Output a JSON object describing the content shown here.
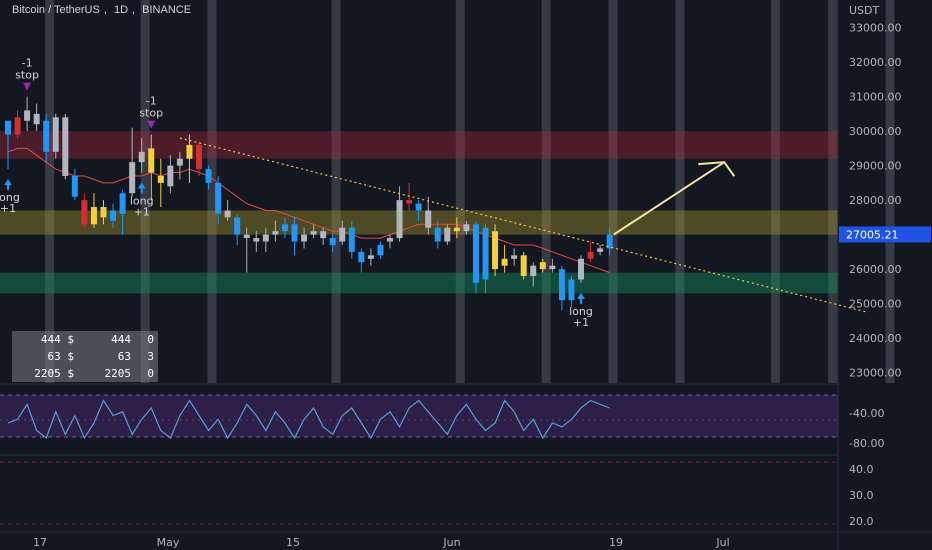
{
  "header": {
    "symbol": "Bitcoin / TetherUS",
    "interval": "1D",
    "exchange": "BINANCE",
    "sep": ","
  },
  "price_axis": {
    "currency": "USDT",
    "ticks": [
      "33000.00",
      "32000.00",
      "31000.00",
      "30000.00",
      "29000.00",
      "28000.00",
      "27000.00",
      "26000.00",
      "25000.00",
      "24000.00",
      "23000.00"
    ],
    "current_price": "27005.21",
    "current_price_value": 27005.21
  },
  "rsi_axis": {
    "ticks": [
      "-40.00",
      "-80.00"
    ]
  },
  "lower_axis": {
    "ticks": [
      "40.0",
      "30.0",
      "20.0"
    ]
  },
  "time_axis": {
    "labels": [
      "17",
      "May",
      "15",
      "Jun",
      "19",
      "Jul"
    ]
  },
  "stats_table": [
    {
      "a": "444 $",
      "b": "444",
      "c": "0"
    },
    {
      "a": "63 $",
      "b": "63",
      "c": "3"
    },
    {
      "a": "2205 $",
      "b": "2205",
      "c": "0"
    }
  ],
  "signals": [
    {
      "text": "-1",
      "text2": "stop",
      "type": "stop",
      "i": 2
    },
    {
      "text": "long",
      "text2": "+1",
      "type": "long",
      "i": 0
    },
    {
      "text": "-1",
      "text2": "stop",
      "type": "stop",
      "i": 15
    },
    {
      "text": "long",
      "text2": "+1",
      "type": "long",
      "i": 14
    },
    {
      "text": "long",
      "text2": "+1",
      "type": "long",
      "i": 60
    }
  ],
  "colors": {
    "background": "#131722",
    "up_blue": "#2196f3",
    "down_gray": "#b2b5be",
    "yellow": "#f4d03f",
    "red": "#d32f2f",
    "ma": "#e04f3f",
    "trend": "#f5c842",
    "arrow": "#f0e6a0",
    "rsi": "#5b9bd5",
    "zone_red": "rgba(180,40,60,0.35)",
    "zone_yellow": "rgba(190,170,40,0.35)",
    "zone_green": "rgba(20,140,90,0.45)",
    "price_tag": "#1e53e5"
  },
  "chart_data": {
    "type": "candlestick",
    "title": "Bitcoin / TetherUS, 1D, BINANCE",
    "ylim": [
      22700,
      33800
    ],
    "zones": [
      {
        "name": "resistance",
        "low": 29200,
        "high": 30000,
        "color": "red"
      },
      {
        "name": "mid",
        "low": 27000,
        "high": 27700,
        "color": "yellow"
      },
      {
        "name": "support",
        "low": 25300,
        "high": 25900,
        "color": "green"
      }
    ],
    "candles": [
      {
        "o": 29900,
        "h": 30200,
        "l": 28900,
        "c": 30300,
        "col": "blue"
      },
      {
        "o": 30400,
        "h": 30600,
        "l": 29800,
        "c": 29900,
        "col": "red"
      },
      {
        "o": 30300,
        "h": 31000,
        "l": 30000,
        "c": 30600,
        "col": "gray"
      },
      {
        "o": 30500,
        "h": 30800,
        "l": 30000,
        "c": 30200,
        "col": "gray"
      },
      {
        "o": 30300,
        "h": 30500,
        "l": 29100,
        "c": 29400,
        "col": "blue"
      },
      {
        "o": 29400,
        "h": 30500,
        "l": 29200,
        "c": 30400,
        "col": "gray"
      },
      {
        "o": 30400,
        "h": 30500,
        "l": 28600,
        "c": 28700,
        "col": "gray"
      },
      {
        "o": 28700,
        "h": 28900,
        "l": 28000,
        "c": 28100,
        "col": "blue"
      },
      {
        "o": 28000,
        "h": 28200,
        "l": 27200,
        "c": 27300,
        "col": "red"
      },
      {
        "o": 27300,
        "h": 28200,
        "l": 27200,
        "c": 27800,
        "col": "yellow"
      },
      {
        "o": 27800,
        "h": 28000,
        "l": 27300,
        "c": 27500,
        "col": "yellow"
      },
      {
        "o": 27400,
        "h": 27900,
        "l": 27200,
        "c": 27700,
        "col": "blue"
      },
      {
        "o": 27600,
        "h": 28300,
        "l": 27000,
        "c": 28200,
        "col": "blue"
      },
      {
        "o": 28200,
        "h": 30100,
        "l": 28100,
        "c": 29100,
        "col": "gray"
      },
      {
        "o": 29100,
        "h": 29800,
        "l": 28800,
        "c": 29400,
        "col": "gray"
      },
      {
        "o": 29500,
        "h": 29900,
        "l": 28000,
        "c": 28800,
        "col": "yellow"
      },
      {
        "o": 28700,
        "h": 29200,
        "l": 27800,
        "c": 28500,
        "col": "yellow"
      },
      {
        "o": 28400,
        "h": 29300,
        "l": 28200,
        "c": 29000,
        "col": "gray"
      },
      {
        "o": 29000,
        "h": 29400,
        "l": 28600,
        "c": 29200,
        "col": "gray"
      },
      {
        "o": 29200,
        "h": 29900,
        "l": 28500,
        "c": 29600,
        "col": "yellow"
      },
      {
        "o": 29600,
        "h": 29700,
        "l": 28700,
        "c": 28900,
        "col": "red"
      },
      {
        "o": 28900,
        "h": 29000,
        "l": 28300,
        "c": 28500,
        "col": "blue"
      },
      {
        "o": 28500,
        "h": 28700,
        "l": 27300,
        "c": 27600,
        "col": "blue"
      },
      {
        "o": 27700,
        "h": 28000,
        "l": 27400,
        "c": 27500,
        "col": "gray"
      },
      {
        "o": 27500,
        "h": 27600,
        "l": 26700,
        "c": 27000,
        "col": "blue"
      },
      {
        "o": 27000,
        "h": 27200,
        "l": 25900,
        "c": 26900,
        "col": "gray"
      },
      {
        "o": 26900,
        "h": 27100,
        "l": 26500,
        "c": 26800,
        "col": "gray"
      },
      {
        "o": 26800,
        "h": 27200,
        "l": 26500,
        "c": 27000,
        "col": "gray"
      },
      {
        "o": 27000,
        "h": 27400,
        "l": 26800,
        "c": 27100,
        "col": "gray"
      },
      {
        "o": 27100,
        "h": 27500,
        "l": 26900,
        "c": 27300,
        "col": "blue"
      },
      {
        "o": 27300,
        "h": 27500,
        "l": 26400,
        "c": 26800,
        "col": "blue"
      },
      {
        "o": 26800,
        "h": 27200,
        "l": 26600,
        "c": 27000,
        "col": "gray"
      },
      {
        "o": 27000,
        "h": 27300,
        "l": 26900,
        "c": 27100,
        "col": "gray"
      },
      {
        "o": 27100,
        "h": 27200,
        "l": 26700,
        "c": 26900,
        "col": "gray"
      },
      {
        "o": 26900,
        "h": 27000,
        "l": 26500,
        "c": 26700,
        "col": "blue"
      },
      {
        "o": 26800,
        "h": 27400,
        "l": 26700,
        "c": 27200,
        "col": "gray"
      },
      {
        "o": 27200,
        "h": 27400,
        "l": 26300,
        "c": 26500,
        "col": "blue"
      },
      {
        "o": 26500,
        "h": 26600,
        "l": 25900,
        "c": 26200,
        "col": "blue"
      },
      {
        "o": 26300,
        "h": 26600,
        "l": 26100,
        "c": 26400,
        "col": "gray"
      },
      {
        "o": 26400,
        "h": 26800,
        "l": 26300,
        "c": 26700,
        "col": "blue"
      },
      {
        "o": 26800,
        "h": 27000,
        "l": 26600,
        "c": 26900,
        "col": "gray"
      },
      {
        "o": 26900,
        "h": 28400,
        "l": 26800,
        "c": 28000,
        "col": "gray"
      },
      {
        "o": 28000,
        "h": 28500,
        "l": 27700,
        "c": 27900,
        "col": "red"
      },
      {
        "o": 27900,
        "h": 28000,
        "l": 27400,
        "c": 27700,
        "col": "blue"
      },
      {
        "o": 27700,
        "h": 28100,
        "l": 27000,
        "c": 27200,
        "col": "gray"
      },
      {
        "o": 27200,
        "h": 27400,
        "l": 26600,
        "c": 26800,
        "col": "blue"
      },
      {
        "o": 26800,
        "h": 27300,
        "l": 26700,
        "c": 27200,
        "col": "gray"
      },
      {
        "o": 27200,
        "h": 27500,
        "l": 26900,
        "c": 27100,
        "col": "yellow"
      },
      {
        "o": 27100,
        "h": 27400,
        "l": 27000,
        "c": 27300,
        "col": "gray"
      },
      {
        "o": 27300,
        "h": 27400,
        "l": 25300,
        "c": 25600,
        "col": "blue"
      },
      {
        "o": 25700,
        "h": 27300,
        "l": 25300,
        "c": 27200,
        "col": "blue"
      },
      {
        "o": 27100,
        "h": 27300,
        "l": 25800,
        "c": 26000,
        "col": "yellow"
      },
      {
        "o": 26100,
        "h": 26700,
        "l": 25900,
        "c": 26300,
        "col": "yellow"
      },
      {
        "o": 26300,
        "h": 26600,
        "l": 26100,
        "c": 26400,
        "col": "gray"
      },
      {
        "o": 26400,
        "h": 26500,
        "l": 25700,
        "c": 25800,
        "col": "yellow"
      },
      {
        "o": 25800,
        "h": 26200,
        "l": 25500,
        "c": 26100,
        "col": "gray"
      },
      {
        "o": 26000,
        "h": 26300,
        "l": 25900,
        "c": 26200,
        "col": "yellow"
      },
      {
        "o": 26100,
        "h": 26300,
        "l": 25900,
        "c": 26000,
        "col": "gray"
      },
      {
        "o": 26000,
        "h": 26100,
        "l": 24800,
        "c": 25100,
        "col": "blue"
      },
      {
        "o": 25100,
        "h": 25800,
        "l": 24900,
        "c": 25700,
        "col": "blue"
      },
      {
        "o": 25700,
        "h": 26400,
        "l": 25600,
        "c": 26300,
        "col": "gray"
      },
      {
        "o": 26300,
        "h": 26800,
        "l": 26200,
        "c": 26500,
        "col": "red"
      },
      {
        "o": 26500,
        "h": 26700,
        "l": 26400,
        "c": 26600,
        "col": "gray"
      },
      {
        "o": 26600,
        "h": 27200,
        "l": 26400,
        "c": 27000,
        "col": "blue"
      }
    ],
    "ma_line": [
      29400,
      29500,
      29500,
      29300,
      29100,
      28900,
      28800,
      28700,
      28700,
      28600,
      28500,
      28500,
      28600,
      28700,
      28700,
      28800,
      28700,
      28800,
      28800,
      28900,
      28800,
      28700,
      28500,
      28300,
      28100,
      27900,
      27800,
      27700,
      27700,
      27600,
      27500,
      27400,
      27300,
      27200,
      27100,
      27100,
      27000,
      26900,
      26900,
      26900,
      27000,
      27100,
      27200,
      27300,
      27300,
      27300,
      27300,
      27300,
      27200,
      27100,
      27000,
      26900,
      26800,
      26700,
      26700,
      26700,
      26600,
      26500,
      26400,
      26300,
      26200,
      26100,
      26000,
      25900
    ],
    "trendline": {
      "from_i": 18,
      "from_price": 29800,
      "to_i": 90,
      "to_price": 24750
    },
    "projection": {
      "from_i": 63,
      "from_price": 27000,
      "to_i": 75,
      "to_price": 29100
    },
    "highlight_columns": [
      2,
      12,
      19,
      32,
      45,
      54,
      61,
      68,
      78,
      84,
      90
    ],
    "rsi_values": [
      -60,
      -55,
      -35,
      -70,
      -80,
      -45,
      -75,
      -50,
      -80,
      -60,
      -30,
      -50,
      -45,
      -75,
      -55,
      -40,
      -70,
      -80,
      -50,
      -30,
      -50,
      -70,
      -55,
      -80,
      -60,
      -35,
      -50,
      -70,
      -45,
      -60,
      -80,
      -55,
      -40,
      -65,
      -75,
      -50,
      -40,
      -60,
      -80,
      -55,
      -45,
      -65,
      -40,
      -30,
      -45,
      -60,
      -75,
      -50,
      -35,
      -55,
      -70,
      -60,
      -30,
      -45,
      -70,
      -55,
      -80,
      -60,
      -65,
      -55,
      -40,
      -30,
      -35,
      -40
    ],
    "rsi_ylim": [
      -100,
      -20
    ]
  }
}
